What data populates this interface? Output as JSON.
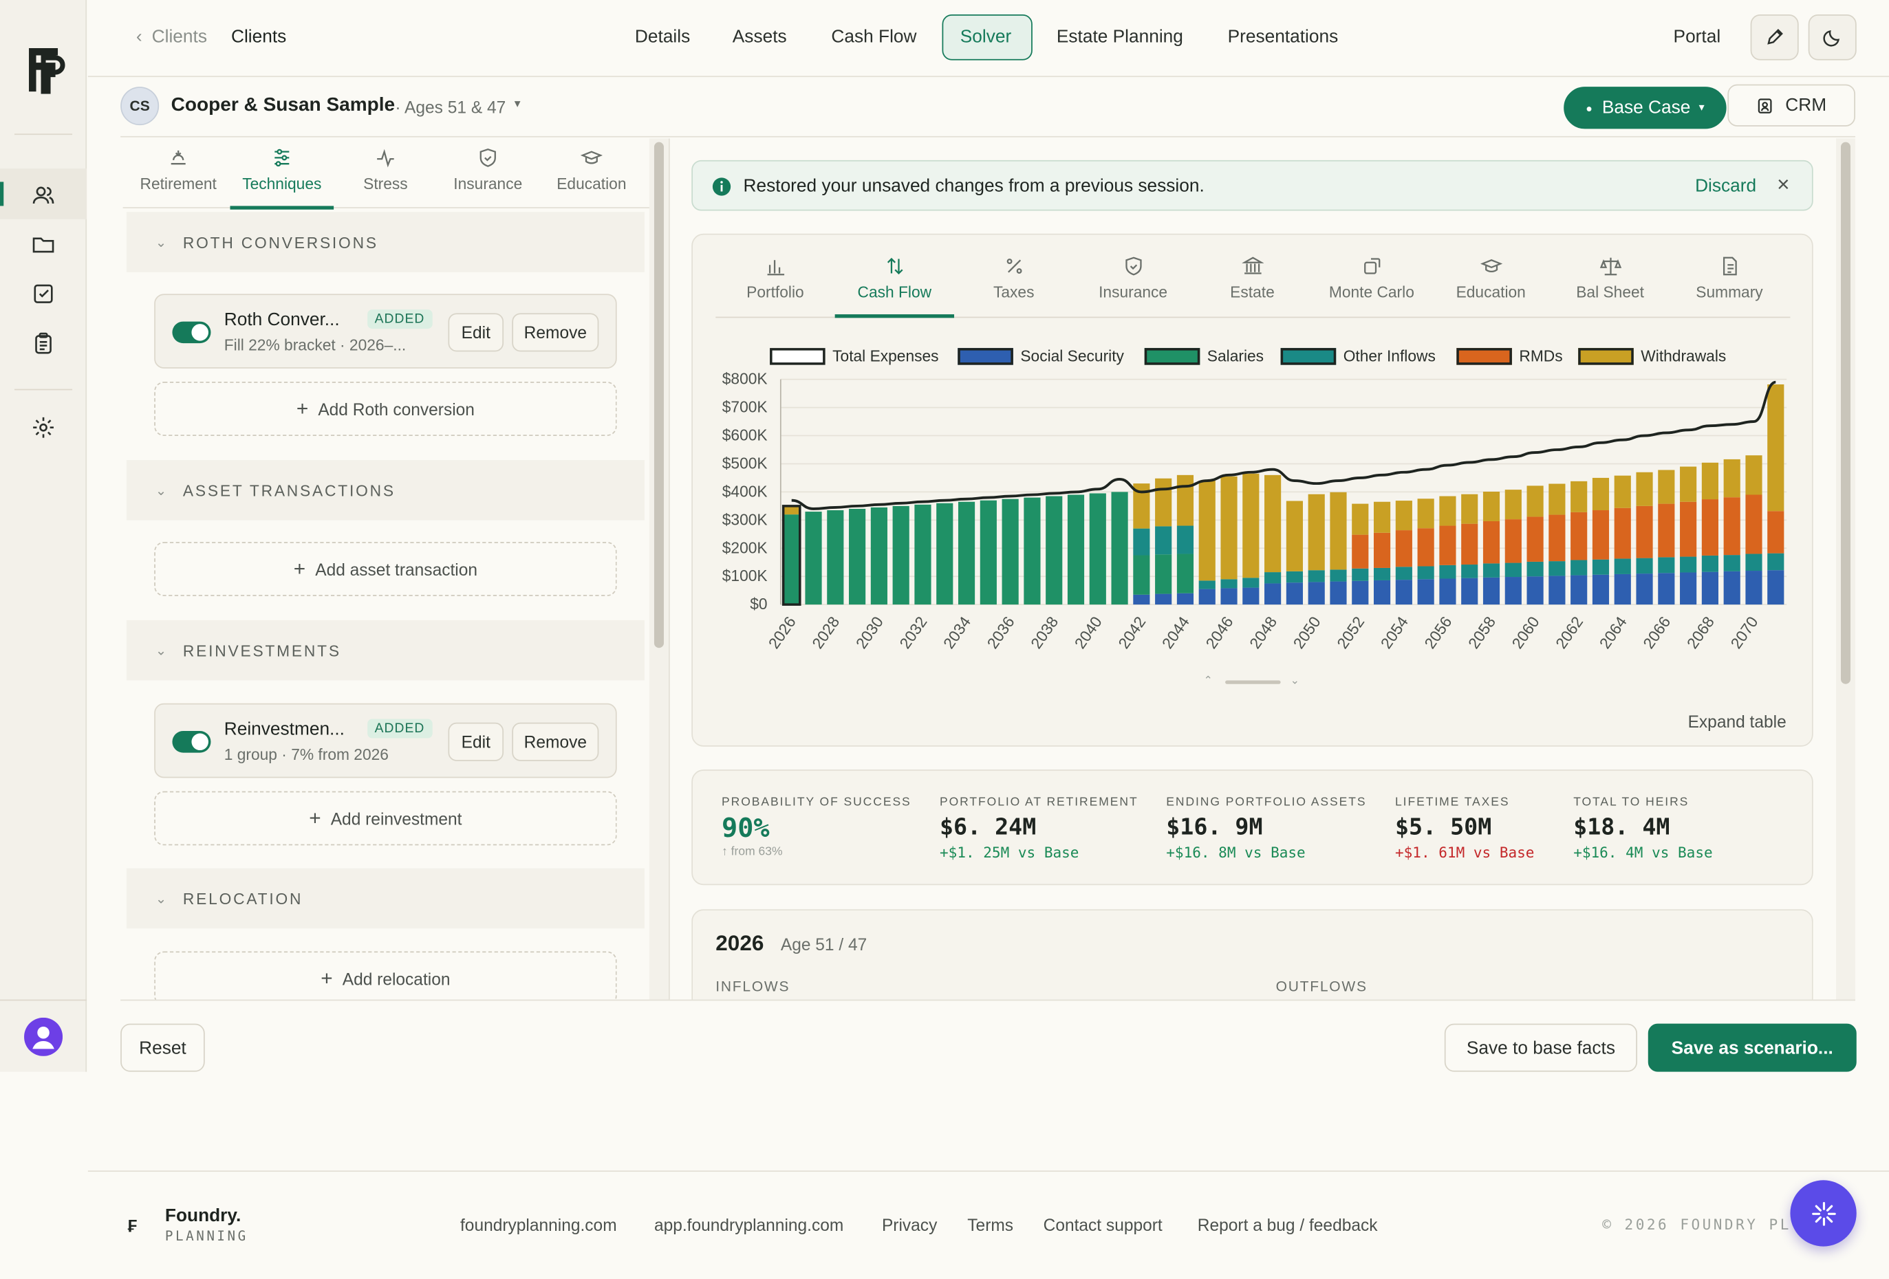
{
  "app": {
    "logo_text": "FP"
  },
  "header": {
    "back_label": "Clients",
    "crumb_label": "Clients",
    "nav": [
      "Details",
      "Assets",
      "Cash Flow",
      "Solver",
      "Estate Planning",
      "Presentations"
    ],
    "active_nav": "Solver",
    "portal_label": "Portal"
  },
  "client": {
    "initials": "CS",
    "name": "Cooper & Susan Sample",
    "ages": "· Ages 51 & 47",
    "scenario_label": "Base Case",
    "crm_label": "CRM"
  },
  "solver_tabs": [
    "Retirement",
    "Techniques",
    "Stress",
    "Insurance",
    "Education"
  ],
  "active_solver_tab": "Techniques",
  "sections": {
    "roth": {
      "title": "ROTH CONVERSIONS",
      "card": {
        "name": "Roth Conver...",
        "badge": "ADDED",
        "sub": "Fill 22% bracket · 2026–...",
        "edit": "Edit",
        "remove": "Remove"
      },
      "add_label": "Add Roth conversion"
    },
    "asset_tx": {
      "title": "ASSET TRANSACTIONS",
      "add_label": "Add asset transaction"
    },
    "reinvest": {
      "title": "REINVESTMENTS",
      "card": {
        "name": "Reinvestmen...",
        "badge": "ADDED",
        "sub": "1 group · 7% from 2026",
        "edit": "Edit",
        "remove": "Remove"
      },
      "add_label": "Add reinvestment"
    },
    "relocation": {
      "title": "RELOCATION",
      "add_label": "Add relocation"
    }
  },
  "notice": {
    "text": "Restored your unsaved changes from a previous session.",
    "discard": "Discard"
  },
  "result_tabs": [
    "Portfolio",
    "Cash Flow",
    "Taxes",
    "Insurance",
    "Estate",
    "Monte Carlo",
    "Education",
    "Bal Sheet",
    "Summary"
  ],
  "active_result_tab": "Cash Flow",
  "expand_table": "Expand table",
  "colors": {
    "accent": "#157a5a",
    "social_security": "#2e5fb0",
    "salaries": "#1f9166",
    "other_inflows": "#1a8a86",
    "rmds": "#d9651e",
    "withdrawals": "#c9a024"
  },
  "chart_data": {
    "type": "bar",
    "stacked": true,
    "legend": [
      "Total Expenses",
      "Social Security",
      "Salaries",
      "Other Inflows",
      "RMDs",
      "Withdrawals"
    ],
    "legend_position": "top",
    "ylim": [
      0,
      800000
    ],
    "y_ticks": [
      "$0",
      "$100K",
      "$200K",
      "$300K",
      "$400K",
      "$500K",
      "$600K",
      "$700K",
      "$800K"
    ],
    "x_tick_labels": [
      "2026",
      "2028",
      "2030",
      "2032",
      "2034",
      "2036",
      "2038",
      "2040",
      "2042",
      "2044",
      "2046",
      "2048",
      "2050",
      "2052",
      "2054",
      "2056",
      "2058",
      "2060",
      "2062",
      "2064",
      "2066",
      "2068",
      "2070"
    ],
    "x": [
      2026,
      2027,
      2028,
      2029,
      2030,
      2031,
      2032,
      2033,
      2034,
      2035,
      2036,
      2037,
      2038,
      2039,
      2040,
      2041,
      2042,
      2043,
      2044,
      2045,
      2046,
      2047,
      2048,
      2049,
      2050,
      2051,
      2052,
      2053,
      2054,
      2055,
      2056,
      2057,
      2058,
      2059,
      2060,
      2061,
      2062,
      2063,
      2064,
      2065,
      2066,
      2067,
      2068,
      2069,
      2070,
      2071
    ],
    "series": [
      {
        "name": "Social Security",
        "values": [
          0,
          0,
          0,
          0,
          0,
          0,
          0,
          0,
          0,
          0,
          0,
          0,
          0,
          0,
          0,
          0,
          35000,
          38000,
          40000,
          55000,
          58000,
          60000,
          75000,
          78000,
          80000,
          82000,
          84000,
          86000,
          88000,
          90000,
          92000,
          94000,
          96000,
          98000,
          100000,
          102000,
          104000,
          106000,
          108000,
          110000,
          112000,
          114000,
          116000,
          118000,
          120000,
          122000
        ]
      },
      {
        "name": "Salaries",
        "values": [
          320000,
          330000,
          335000,
          340000,
          345000,
          350000,
          355000,
          360000,
          365000,
          370000,
          375000,
          380000,
          385000,
          390000,
          395000,
          400000,
          140000,
          140000,
          140000,
          0,
          0,
          0,
          0,
          0,
          0,
          0,
          0,
          0,
          0,
          0,
          0,
          0,
          0,
          0,
          0,
          0,
          0,
          0,
          0,
          0,
          0,
          0,
          0,
          0,
          0,
          0
        ]
      },
      {
        "name": "Other Inflows",
        "values": [
          0,
          0,
          0,
          0,
          0,
          0,
          0,
          0,
          0,
          0,
          0,
          0,
          0,
          0,
          0,
          0,
          95000,
          100000,
          100000,
          30000,
          32000,
          35000,
          40000,
          40000,
          42000,
          42000,
          44000,
          44000,
          46000,
          46000,
          48000,
          48000,
          50000,
          50000,
          52000,
          52000,
          54000,
          54000,
          55000,
          55000,
          56000,
          56000,
          58000,
          58000,
          60000,
          60000
        ]
      },
      {
        "name": "RMDs",
        "values": [
          0,
          0,
          0,
          0,
          0,
          0,
          0,
          0,
          0,
          0,
          0,
          0,
          0,
          0,
          0,
          0,
          0,
          0,
          0,
          0,
          0,
          0,
          0,
          0,
          0,
          0,
          120000,
          125000,
          130000,
          135000,
          140000,
          145000,
          150000,
          155000,
          160000,
          165000,
          170000,
          175000,
          180000,
          185000,
          190000,
          195000,
          200000,
          205000,
          210000,
          150000
        ]
      },
      {
        "name": "Withdrawals",
        "values": [
          30000,
          0,
          0,
          0,
          0,
          0,
          0,
          0,
          0,
          0,
          0,
          0,
          0,
          0,
          0,
          0,
          160000,
          170000,
          180000,
          355000,
          365000,
          370000,
          345000,
          250000,
          270000,
          275000,
          110000,
          110000,
          105000,
          105000,
          105000,
          105000,
          105000,
          105000,
          110000,
          110000,
          110000,
          115000,
          115000,
          120000,
          120000,
          125000,
          130000,
          135000,
          140000,
          450000
        ]
      },
      {
        "name": "Total Expenses",
        "type": "line",
        "values": [
          370000,
          340000,
          345000,
          350000,
          355000,
          360000,
          365000,
          370000,
          375000,
          380000,
          385000,
          390000,
          395000,
          400000,
          410000,
          445000,
          400000,
          410000,
          420000,
          440000,
          460000,
          470000,
          480000,
          440000,
          430000,
          440000,
          450000,
          460000,
          470000,
          480000,
          495000,
          505000,
          515000,
          525000,
          540000,
          550000,
          560000,
          575000,
          585000,
          600000,
          610000,
          620000,
          635000,
          640000,
          650000,
          790000
        ]
      }
    ]
  },
  "stats": [
    {
      "label": "PROBABILITY OF SUCCESS",
      "value": "90%",
      "delta": "↑ from 63%"
    },
    {
      "label": "PORTFOLIO AT RETIREMENT",
      "value": "$6. 24M",
      "delta": "+$1. 25M vs Base"
    },
    {
      "label": "ENDING PORTFOLIO ASSETS",
      "value": "$16. 9M",
      "delta": "+$16. 8M vs Base"
    },
    {
      "label": "LIFETIME TAXES",
      "value": "$5. 50M",
      "delta": "+$1. 61M vs Base"
    },
    {
      "label": "TOTAL TO HEIRS",
      "value": "$18. 4M",
      "delta": "+$16. 4M vs Base"
    }
  ],
  "year_detail": {
    "year": "2026",
    "ages": "Age 51 / 47",
    "inflows": "INFLOWS",
    "outflows": "OUTFLOWS"
  },
  "actions": {
    "reset": "Reset",
    "save_base": "Save to base facts",
    "save_scenario": "Save as scenario..."
  },
  "footer": {
    "brand": "Foundry.",
    "brand_sub": "PLANNING",
    "links": [
      "foundryplanning.com",
      "app.foundryplanning.com",
      "Privacy",
      "Terms",
      "Contact support",
      "Report a bug / feedback"
    ],
    "copyright": "© 2026 FOUNDRY PL"
  }
}
